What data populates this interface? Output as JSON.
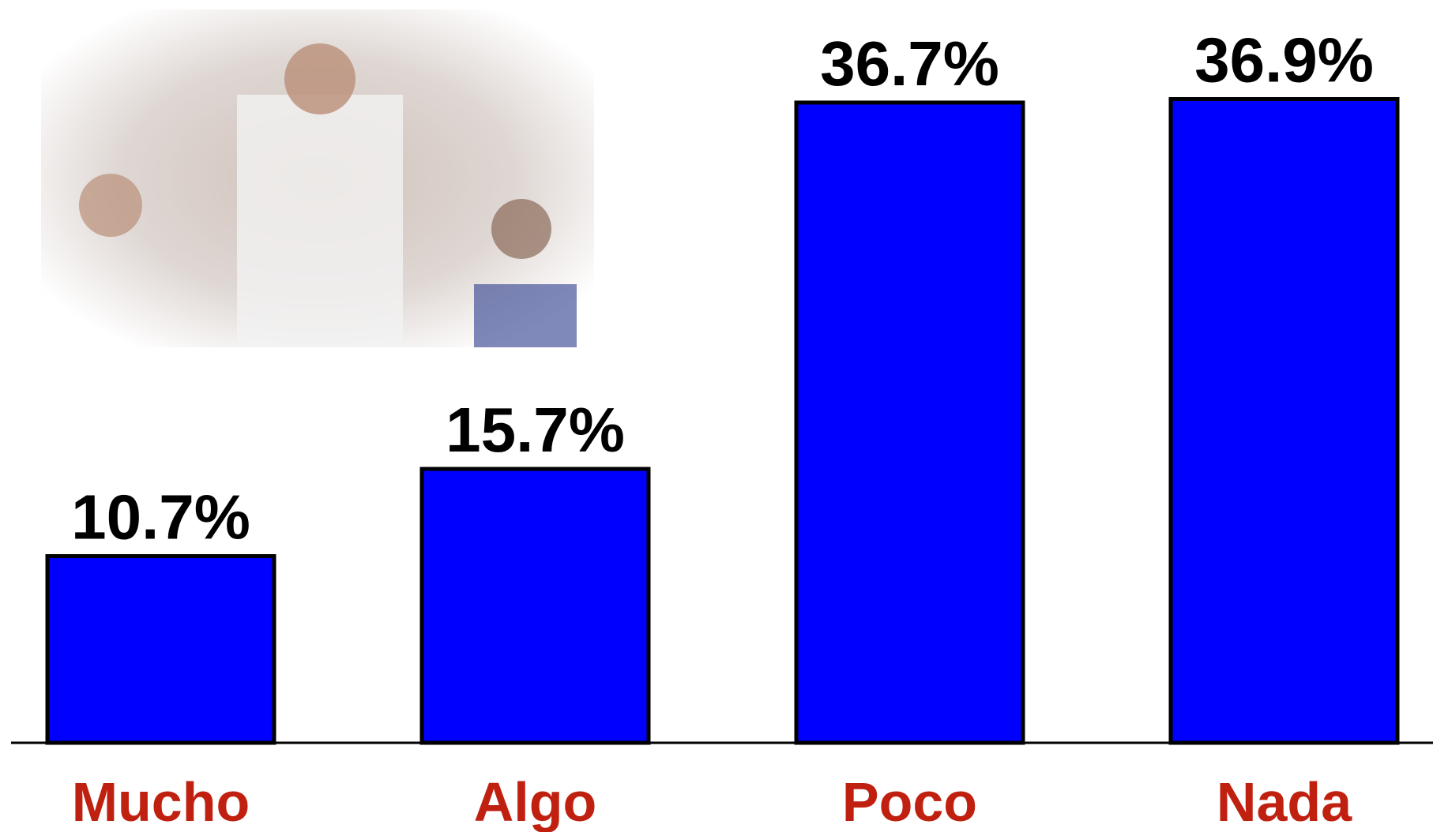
{
  "chart_data": {
    "type": "bar",
    "categories": [
      "Mucho",
      "Algo",
      "Poco",
      "Nada"
    ],
    "values": [
      10.7,
      15.7,
      36.7,
      36.9
    ],
    "value_labels": [
      "10.7%",
      "15.7%",
      "36.7%",
      "36.9%"
    ],
    "color": "#0000ff"
  }
}
